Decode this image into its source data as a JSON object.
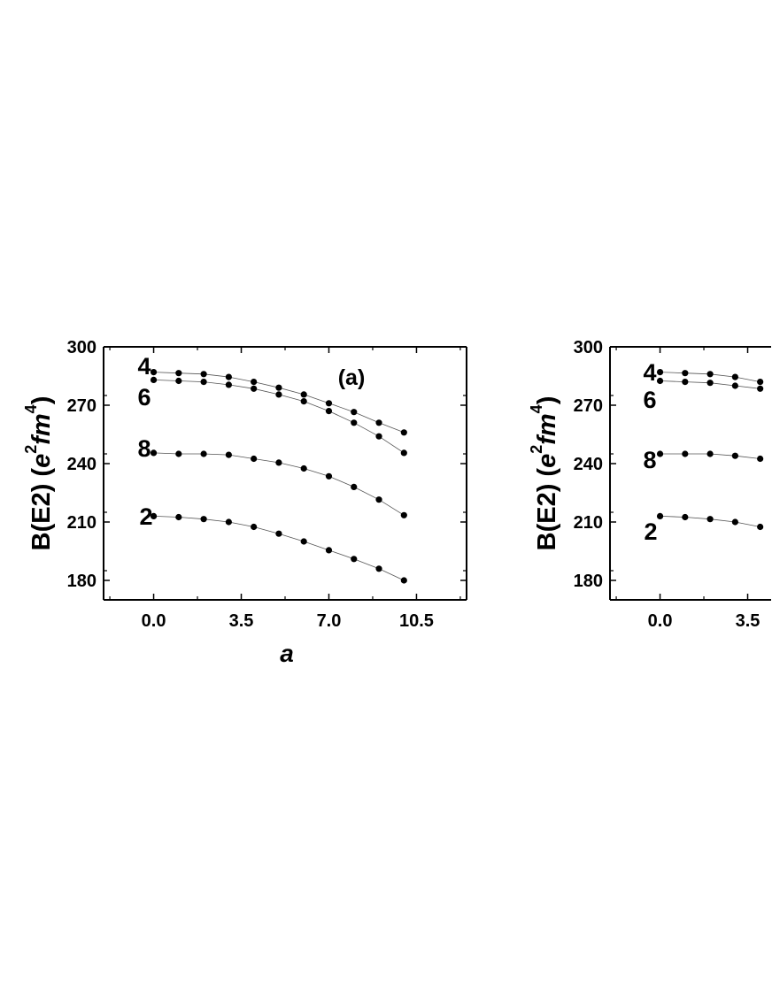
{
  "chart_data": [
    {
      "type": "line",
      "panel_label": "(a)",
      "xlabel": "a",
      "ylabel": {
        "base": "B(E2) (e",
        "sup1": "2",
        "mid": "fm",
        "sup2": "4",
        "end": ")"
      },
      "xlim": [
        -2.0,
        12.5
      ],
      "ylim": [
        170,
        300
      ],
      "xticks": [
        0.0,
        3.5,
        7.0,
        10.5
      ],
      "xtick_labels": [
        "0.0",
        "3.5",
        "7.0",
        "10.5"
      ],
      "yticks": [
        180,
        210,
        240,
        270,
        300
      ],
      "ytick_labels": [
        "180",
        "210",
        "240",
        "270",
        "300"
      ],
      "x": [
        0,
        1,
        2,
        3,
        4,
        5,
        6,
        7,
        8,
        9,
        10
      ],
      "series": [
        {
          "name": "4",
          "values": [
            287,
            286.5,
            286,
            284.5,
            282,
            279,
            275.5,
            271,
            266.5,
            261,
            256
          ]
        },
        {
          "name": "6",
          "values": [
            283,
            282.5,
            282,
            280.5,
            278.5,
            275.5,
            272,
            267,
            261,
            254,
            245.5
          ]
        },
        {
          "name": "8",
          "values": [
            245.5,
            245,
            245,
            244.5,
            242.5,
            240.5,
            237.5,
            233.5,
            228,
            221.5,
            213.5
          ]
        },
        {
          "name": "2",
          "values": [
            213,
            212.5,
            211.5,
            210,
            207.5,
            204,
            200,
            195.5,
            191,
            186,
            180
          ]
        }
      ]
    },
    {
      "type": "line",
      "panel_label": "",
      "xlabel": "",
      "ylabel": {
        "base": "B(E2) (e",
        "sup1": "2",
        "mid": "fm",
        "sup2": "4",
        "end": ")"
      },
      "xlim": [
        -2.0,
        12.5
      ],
      "ylim": [
        170,
        300
      ],
      "xticks": [
        0.0,
        3.5
      ],
      "xtick_labels": [
        "0.0",
        "3.5"
      ],
      "yticks": [
        180,
        210,
        240,
        270,
        300
      ],
      "ytick_labels": [
        "180",
        "210",
        "240",
        "270",
        "300"
      ],
      "x": [
        0,
        1,
        2,
        3,
        4
      ],
      "series": [
        {
          "name": "4",
          "values": [
            287,
            286.5,
            286,
            284.5,
            282
          ]
        },
        {
          "name": "6",
          "values": [
            282.5,
            282,
            281.5,
            280,
            278.5
          ]
        },
        {
          "name": "8",
          "values": [
            245,
            245,
            245,
            244,
            242.5
          ]
        },
        {
          "name": "2",
          "values": [
            213,
            212.5,
            211.5,
            210,
            207.5
          ]
        }
      ]
    }
  ]
}
